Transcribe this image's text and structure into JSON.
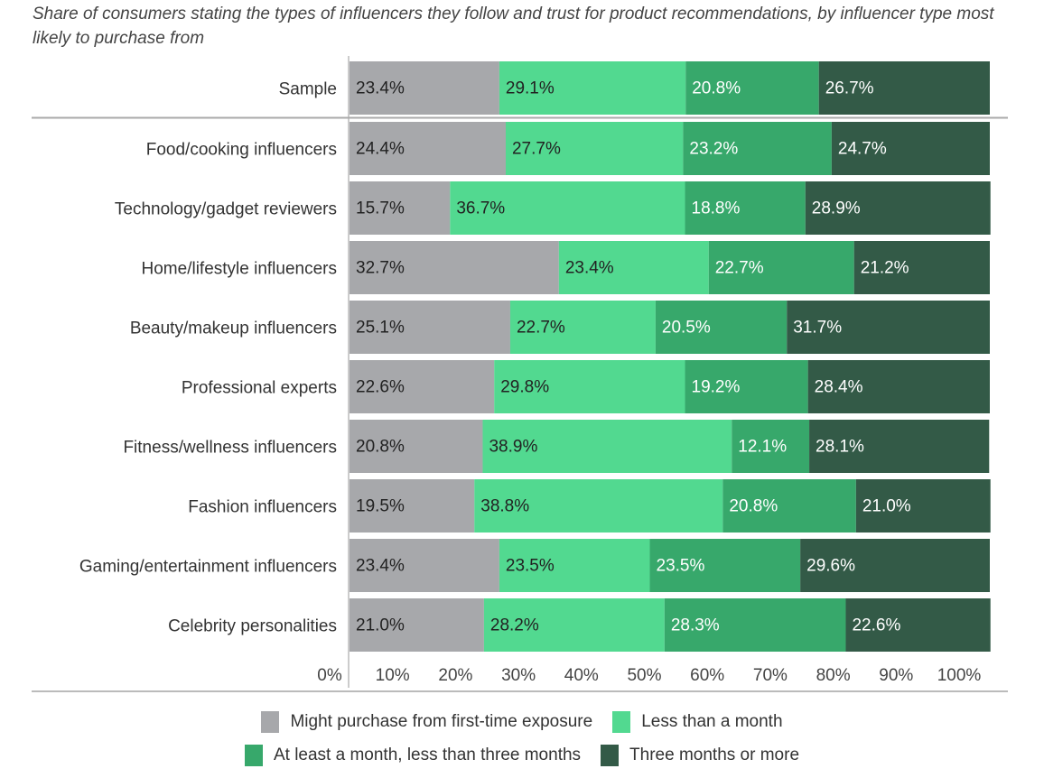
{
  "chart_data": {
    "type": "bar",
    "orientation": "horizontal",
    "stacked": true,
    "title": "Share of consumers stating the types of influencers they follow and trust for product recommendations, by influencer type most likely to purchase from",
    "xlabel": "",
    "ylabel": "",
    "xlim": [
      0,
      100
    ],
    "x_ticks": [
      "0%",
      "10%",
      "20%",
      "30%",
      "40%",
      "50%",
      "60%",
      "70%",
      "80%",
      "90%",
      "100%"
    ],
    "categories": [
      "Sample",
      "Food/cooking influencers",
      "Technology/gadget reviewers",
      "Home/lifestyle influencers",
      "Beauty/makeup influencers",
      "Professional experts",
      "Fitness/wellness influencers",
      "Fashion influencers",
      "Gaming/entertainment influencers",
      "Celebrity personalities"
    ],
    "series": [
      {
        "name": "Might purchase from first-time exposure",
        "color": "#a7a8ab",
        "label_color": "#222222",
        "values": [
          23.4,
          24.4,
          15.7,
          32.7,
          25.1,
          22.6,
          20.8,
          19.5,
          23.4,
          21.0
        ]
      },
      {
        "name": "Less than a month",
        "color": "#52d990",
        "label_color": "#222222",
        "values": [
          29.1,
          27.7,
          36.7,
          23.4,
          22.7,
          29.8,
          38.9,
          38.8,
          23.5,
          28.2
        ]
      },
      {
        "name": "At least a month, less than three months",
        "color": "#37a86b",
        "label_color": "#ffffff",
        "values": [
          20.8,
          23.2,
          18.8,
          22.7,
          20.5,
          19.2,
          12.1,
          20.8,
          23.5,
          28.3
        ]
      },
      {
        "name": "Three months or more",
        "color": "#335a47",
        "label_color": "#ffffff",
        "values": [
          26.7,
          24.7,
          28.9,
          21.2,
          31.7,
          28.4,
          28.1,
          21.0,
          29.6,
          22.6
        ]
      }
    ],
    "legend_position": "bottom",
    "grid": false
  }
}
